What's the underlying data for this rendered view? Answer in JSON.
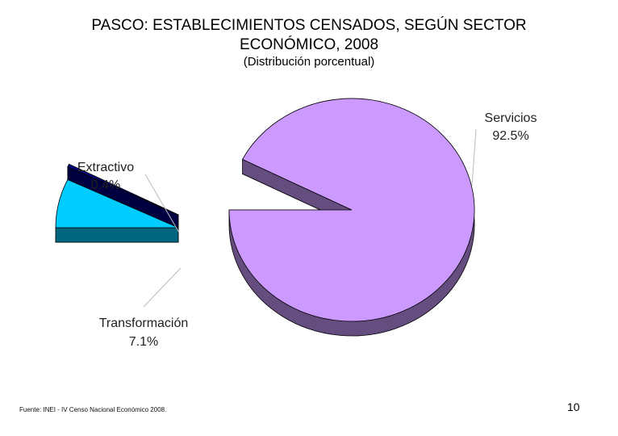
{
  "title_line1": "PASCO: ESTABLECIMIENTOS CENSADOS, SEGÚN SECTOR",
  "title_line2": "ECONÓMICO, 2008",
  "subtitle": "(Distribución porcentual)",
  "footer": "Fuente: INEI - IV Censo Nacional Económico 2008.",
  "page_number": "10",
  "colors": {
    "servicios_top": "#cc99ff",
    "servicios_side": "#664d80",
    "transformacion_top": "#00ccff",
    "transformacion_side": "#006680",
    "extractivo_top": "#000080",
    "extractivo_side": "#000040"
  },
  "chart_data": {
    "type": "pie",
    "title": "PASCO: ESTABLECIMIENTOS CENSADOS, SEGÚN SECTOR ECONÓMICO, 2008",
    "subtitle": "(Distribución porcentual)",
    "unit": "%",
    "slices": [
      {
        "label": "Servicios",
        "value": 92.5,
        "value_label": "92.5%"
      },
      {
        "label": "Extractivo",
        "value": 0.4,
        "value_label": "0.4%"
      },
      {
        "label": "Transformación",
        "value": 7.1,
        "value_label": "7.1%"
      }
    ]
  }
}
